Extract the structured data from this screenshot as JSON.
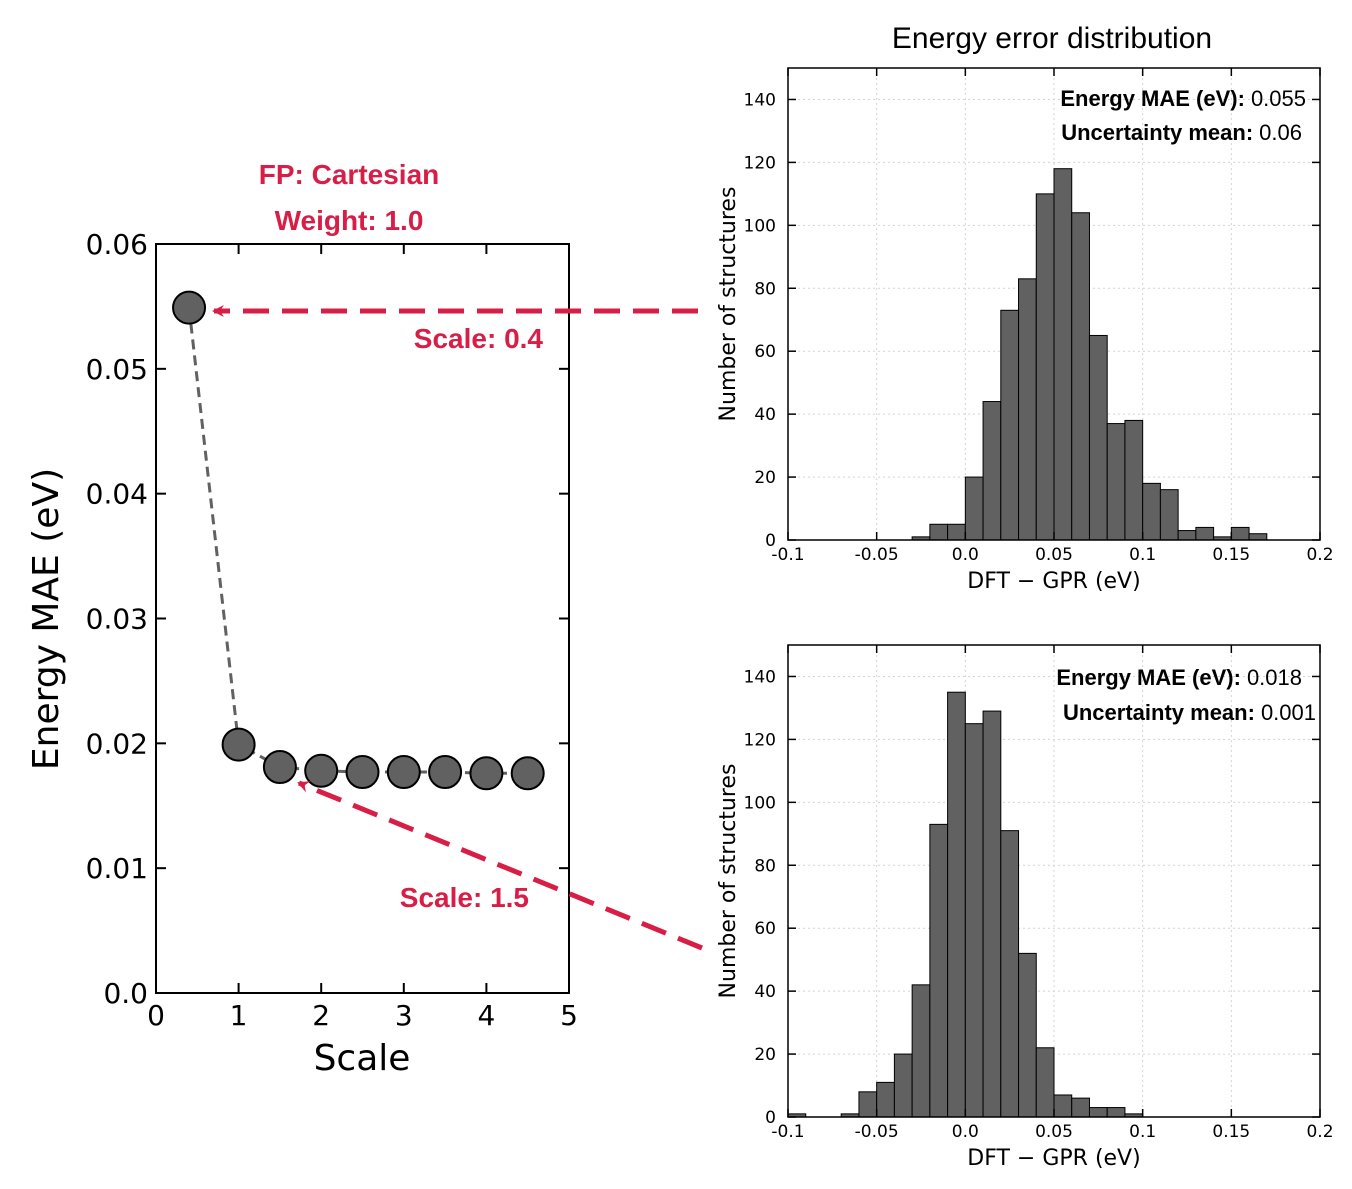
{
  "chart_data": [
    {
      "type": "scatter",
      "annotation_title": [
        "FP: Cartesian",
        "Weight: 1.0"
      ],
      "xlabel": "Scale",
      "ylabel": "Energy MAE (eV)",
      "xlim": [
        0,
        5
      ],
      "ylim": [
        0,
        0.06
      ],
      "x_ticks": [
        "0",
        "1",
        "2",
        "3",
        "4",
        "5"
      ],
      "y_ticks": [
        "0.0",
        "0.01",
        "0.02",
        "0.03",
        "0.04",
        "0.05",
        "0.06"
      ],
      "grid": false,
      "points": [
        {
          "x": 0.4,
          "y": 0.0549
        },
        {
          "x": 1.0,
          "y": 0.0199
        },
        {
          "x": 1.5,
          "y": 0.0181
        },
        {
          "x": 2.0,
          "y": 0.0178
        },
        {
          "x": 2.5,
          "y": 0.0177
        },
        {
          "x": 3.0,
          "y": 0.0177
        },
        {
          "x": 3.5,
          "y": 0.0177
        },
        {
          "x": 4.0,
          "y": 0.0176
        },
        {
          "x": 4.5,
          "y": 0.0176
        }
      ],
      "marker_color": "#616161",
      "line_style": "dashed",
      "callouts": [
        {
          "label": "Scale: 0.4",
          "target_x": 0.4,
          "target_y": 0.0549,
          "links_to": "top histogram"
        },
        {
          "label": "Scale: 1.5",
          "target_x": 1.5,
          "target_y": 0.0181,
          "links_to": "bottom histogram"
        }
      ],
      "callout_color": "#d81e46"
    },
    {
      "type": "bar",
      "title": "Energy error distribution",
      "xlabel": "DFT − GPR (eV)",
      "ylabel": "Number of structures",
      "xlim": [
        -0.1,
        0.2
      ],
      "ylim": [
        0,
        150
      ],
      "x_ticks": [
        "-0.1",
        "-0.05",
        "0.0",
        "0.05",
        "0.1",
        "0.15",
        "0.2"
      ],
      "y_ticks": [
        "0",
        "20",
        "40",
        "60",
        "80",
        "100",
        "120",
        "140"
      ],
      "grid": true,
      "bin_width": 0.01,
      "bin_starts": [
        -0.04,
        -0.03,
        -0.02,
        -0.01,
        0.0,
        0.01,
        0.02,
        0.03,
        0.04,
        0.05,
        0.06,
        0.07,
        0.08,
        0.09,
        0.1,
        0.11,
        0.12,
        0.13,
        0.14,
        0.15,
        0.16
      ],
      "values": [
        0,
        1,
        5,
        5,
        20,
        44,
        73,
        83,
        110,
        118,
        104,
        65,
        37,
        38,
        18,
        16,
        3,
        4,
        1,
        4,
        2
      ],
      "stats": [
        {
          "label": "Energy MAE (eV):",
          "value": "0.055"
        },
        {
          "label": "Uncertainty mean:",
          "value": "0.06"
        }
      ],
      "bar_color": "#616161"
    },
    {
      "type": "bar",
      "title": "",
      "xlabel": "DFT − GPR (eV)",
      "ylabel": "Number of structures",
      "xlim": [
        -0.1,
        0.2
      ],
      "ylim": [
        0,
        150
      ],
      "x_ticks": [
        "-0.1",
        "-0.05",
        "0.0",
        "0.05",
        "0.1",
        "0.15",
        "0.2"
      ],
      "y_ticks": [
        "0",
        "20",
        "40",
        "60",
        "80",
        "100",
        "120",
        "140"
      ],
      "grid": true,
      "bin_width": 0.01,
      "bin_starts": [
        -0.1,
        -0.09,
        -0.08,
        -0.07,
        -0.06,
        -0.05,
        -0.04,
        -0.03,
        -0.02,
        -0.01,
        0.0,
        0.01,
        0.02,
        0.03,
        0.04,
        0.05,
        0.06,
        0.07,
        0.08,
        0.09
      ],
      "values": [
        1,
        0,
        0,
        1,
        8,
        11,
        20,
        42,
        93,
        135,
        125,
        129,
        91,
        52,
        22,
        7,
        6,
        3,
        3,
        1
      ],
      "stats": [
        {
          "label": "Energy MAE (eV):",
          "value": "0.018"
        },
        {
          "label": "Uncertainty mean:",
          "value": "0.001"
        }
      ],
      "bar_color": "#616161"
    }
  ]
}
